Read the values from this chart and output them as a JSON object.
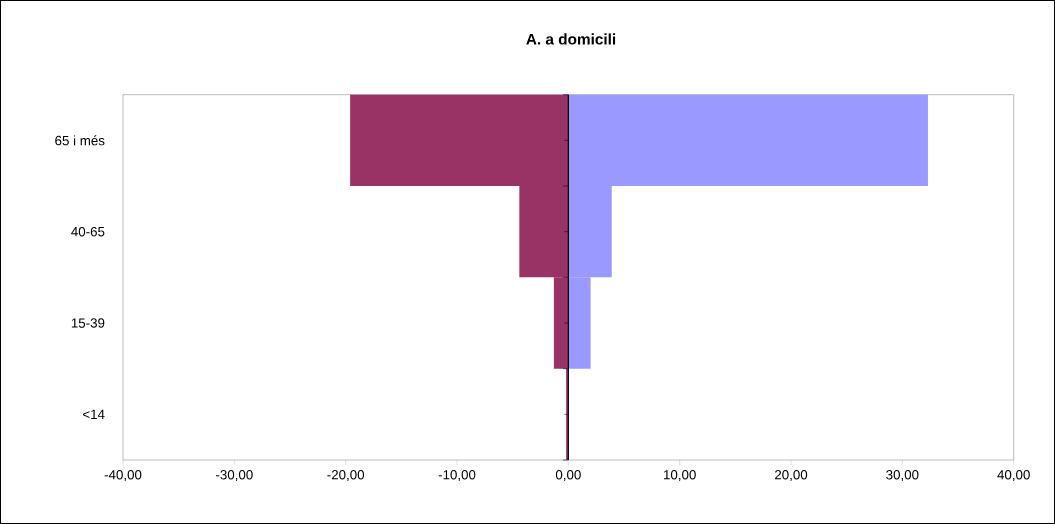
{
  "chart_data": {
    "type": "bar",
    "orientation": "horizontal",
    "stacked": true,
    "title": "A. a domicili",
    "categories": [
      "65 i més",
      "40-65",
      "15-39",
      "<14"
    ],
    "series": [
      {
        "color": "#993366",
        "values": [
          -19.6,
          -4.4,
          -1.3,
          -0.2
        ]
      },
      {
        "color": "#9999ff",
        "values": [
          32.3,
          3.9,
          2.0,
          0
        ]
      }
    ],
    "xlim": [
      -40,
      40
    ],
    "xticks": [
      {
        "value": -40,
        "label": "-40,00"
      },
      {
        "value": -30,
        "label": "-30,00"
      },
      {
        "value": -20,
        "label": "-20,00"
      },
      {
        "value": -10,
        "label": "-10,00"
      },
      {
        "value": 0,
        "label": "0,00"
      },
      {
        "value": 10,
        "label": "10,00"
      },
      {
        "value": 20,
        "label": "20,00"
      },
      {
        "value": 30,
        "label": "30,00"
      },
      {
        "value": 40,
        "label": "40,00"
      }
    ],
    "ref_lines": [
      {
        "axis": "x",
        "value": 0,
        "color": "#000000"
      }
    ],
    "grid": false
  }
}
